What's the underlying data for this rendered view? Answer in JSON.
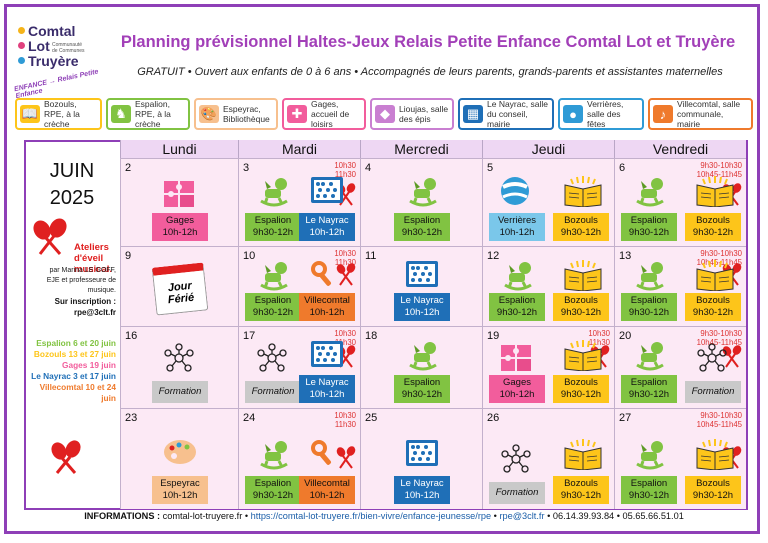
{
  "logo": {
    "line1": "Comtal",
    "line2": "Lot",
    "line3": "Truyère",
    "tagline": "Communauté de Communes",
    "arc": "ENFANCE → Relais Petite Enfance"
  },
  "title": "Planning prévisionnel Haltes-Jeux Relais Petite Enfance Comtal Lot et Truyère",
  "subtitle": "GRATUIT • Ouvert aux enfants de 0 à 6 ans • Accompagnés de leurs parents, grands-parents et assistantes maternelles",
  "legend": [
    {
      "label": "Bozouls, RPE, à la crèche",
      "color": "#fdc51a",
      "icon": "open-book-icon"
    },
    {
      "label": "Espalion, RPE, à la crèche",
      "color": "#81c342",
      "icon": "rocking-horse-icon"
    },
    {
      "label": "Espeyrac, Bibliothèque",
      "color": "#f7c08e",
      "icon": "palette-icon"
    },
    {
      "label": "Gages, accueil de loisirs",
      "color": "#f25d9c",
      "icon": "puzzle-icon"
    },
    {
      "label": "Lioujas, salle des épis",
      "color": "#c97fd1",
      "icon": "spinning-top-icon"
    },
    {
      "label": "Le Nayrac, salle du conseil, mairie",
      "color": "#1f6fb7",
      "icon": "abacus-icon"
    },
    {
      "label": "Verrières, salle des fêtes",
      "color": "#2f9bd6",
      "icon": "ball-icon"
    },
    {
      "label": "Villecomtal, salle communale, mairie",
      "color": "#ef7a2c",
      "icon": "rattle-icon"
    }
  ],
  "month": "JUIN",
  "year": "2025",
  "days": [
    "Lundi",
    "Mardi",
    "Mercredi",
    "Jeudi",
    "Vendredi"
  ],
  "side": {
    "ateliers": "Ateliers d'éveil musical.",
    "marina": "par Marina LE GOFF, EJE et professeure de musique.",
    "inscription": "Sur inscription :",
    "email": "rpe@3clt.fr",
    "dates": [
      {
        "text": "Espalion 6 et 20 juin",
        "color": "#81c342"
      },
      {
        "text": "Bozouls 13 et 27 juin",
        "color": "#fdc51a"
      },
      {
        "text": "Gages 19 juin",
        "color": "#f25d9c"
      },
      {
        "text": "Le Nayrac 3 et 17 juin",
        "color": "#1f6fb7"
      },
      {
        "text": "Villecomtal 10 et 24 juin",
        "color": "#ef7a2c"
      }
    ]
  },
  "cells": {
    "c2": {
      "num": "2",
      "tags": [
        {
          "t": "Gages",
          "h": "10h-12h"
        }
      ]
    },
    "c3": {
      "num": "3",
      "times": "10h30\n11h30",
      "tags": [
        {
          "t": "Espalion",
          "h": "9h30-12h"
        },
        {
          "t": "Le Nayrac",
          "h": "10h-12h"
        }
      ]
    },
    "c4": {
      "num": "4",
      "tags": [
        {
          "t": "Espalion",
          "h": "9h30-12h"
        }
      ]
    },
    "c5": {
      "num": "5",
      "tags": [
        {
          "t": "Verrières",
          "h": "10h-12h"
        },
        {
          "t": "Bozouls",
          "h": "9h30-12h"
        }
      ]
    },
    "c6": {
      "num": "6",
      "times": "9h30-10h30\n10h45-11h45",
      "tags": [
        {
          "t": "Espalion",
          "h": "9h30-12h"
        },
        {
          "t": "Bozouls",
          "h": "9h30-12h"
        }
      ]
    },
    "c9": {
      "num": "9",
      "ferie": "Jour Férié"
    },
    "c10": {
      "num": "10",
      "times": "10h30\n11h30",
      "tags": [
        {
          "t": "Espalion",
          "h": "9h30-12h"
        },
        {
          "t": "Villecomtal",
          "h": "10h-12h"
        }
      ]
    },
    "c11": {
      "num": "11",
      "tags": [
        {
          "t": "Le Nayrac",
          "h": "10h-12h"
        }
      ]
    },
    "c12": {
      "num": "12",
      "tags": [
        {
          "t": "Espalion",
          "h": "9h30-12h"
        },
        {
          "t": "Bozouls",
          "h": "9h30-12h"
        }
      ]
    },
    "c13": {
      "num": "13",
      "times": "9h30-10h30\n10h45-11h45",
      "tags": [
        {
          "t": "Espalion",
          "h": "9h30-12h"
        },
        {
          "t": "Bozouls",
          "h": "9h30-12h"
        }
      ]
    },
    "c16": {
      "num": "16",
      "tags": [
        {
          "t": "Formation",
          "h": ""
        }
      ]
    },
    "c17": {
      "num": "17",
      "times": "10h30\n11h30",
      "tags": [
        {
          "t": "Formation",
          "h": ""
        },
        {
          "t": "Le Nayrac",
          "h": "10h-12h"
        }
      ]
    },
    "c18": {
      "num": "18",
      "tags": [
        {
          "t": "Espalion",
          "h": "9h30-12h"
        }
      ]
    },
    "c19": {
      "num": "19",
      "times": "10h30\n11h30",
      "tags": [
        {
          "t": "Gages",
          "h": "10h-12h"
        },
        {
          "t": "Bozouls",
          "h": "9h30-12h"
        }
      ]
    },
    "c20": {
      "num": "20",
      "times": "9h30-10h30\n10h45-11h45",
      "tags": [
        {
          "t": "Espalion",
          "h": "9h30-12h"
        },
        {
          "t": "Formation",
          "h": ""
        }
      ]
    },
    "c23": {
      "num": "23",
      "tags": [
        {
          "t": "Espeyrac",
          "h": "10h-12h"
        }
      ]
    },
    "c24": {
      "num": "24",
      "times": "10h30\n11h30",
      "tags": [
        {
          "t": "Espalion",
          "h": "9h30-12h"
        },
        {
          "t": "Villecomtal",
          "h": "10h-12h"
        }
      ]
    },
    "c25": {
      "num": "25",
      "tags": [
        {
          "t": "Le Nayrac",
          "h": "10h-12h"
        }
      ]
    },
    "c26": {
      "num": "26",
      "tags": [
        {
          "t": "Formation",
          "h": ""
        },
        {
          "t": "Bozouls",
          "h": "9h30-12h"
        }
      ]
    },
    "c27": {
      "num": "27",
      "times": "9h30-10h30\n10h45-11h45",
      "tags": [
        {
          "t": "Espalion",
          "h": "9h30-12h"
        },
        {
          "t": "Bozouls",
          "h": "9h30-12h"
        }
      ]
    }
  },
  "footer": {
    "label": "INFORMATIONS :",
    "site": "comtal-lot-truyere.fr",
    "url": "https://comtal-lot-truyere.fr/bien-vivre/enfance-jeunesse/rpe",
    "email": "rpe@3clt.fr",
    "tel1": "06.14.39.93.84",
    "tel2": "05.65.66.51.01"
  }
}
